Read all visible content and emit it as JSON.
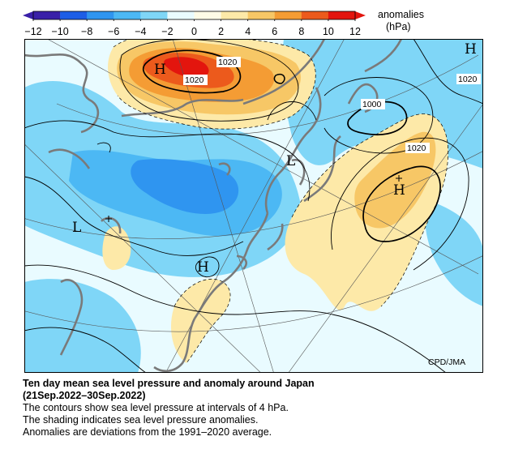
{
  "colorbar": {
    "ticks": [
      "−12",
      "−10",
      "−8",
      "−6",
      "−4",
      "−2",
      "0",
      "2",
      "4",
      "6",
      "8",
      "10",
      "12"
    ],
    "colors": [
      "#3a20a8",
      "#1d5ee6",
      "#2f95f0",
      "#4cb8f4",
      "#7fd6f7",
      "#e9fbff",
      "#fffbe6",
      "#fde9a8",
      "#f7c766",
      "#f49c34",
      "#ec5a1c",
      "#e3150e"
    ],
    "title": "anomalies",
    "unit": "(hPa)"
  },
  "map": {
    "pressure_centers": [
      {
        "label": "H",
        "kind": "high"
      },
      {
        "label": "H",
        "kind": "high"
      },
      {
        "label": "H",
        "kind": "high"
      },
      {
        "label": "H",
        "kind": "high"
      },
      {
        "label": "L",
        "kind": "low"
      },
      {
        "label": "L",
        "kind": "low"
      }
    ],
    "isobar_labels": [
      "1020",
      "1020",
      "1020",
      "1020",
      "1000"
    ],
    "credit": "CPD/JMA"
  },
  "caption": {
    "title": "Ten day mean sea level pressure and anomaly around Japan",
    "period": "(21Sep.2022–30Sep.2022)",
    "line1": "The contours show sea level pressure at intervals of 4 hPa.",
    "line2": "The shading indicates sea level pressure anomalies.",
    "line3": "Anomalies are deviations from the 1991–2020 average."
  }
}
